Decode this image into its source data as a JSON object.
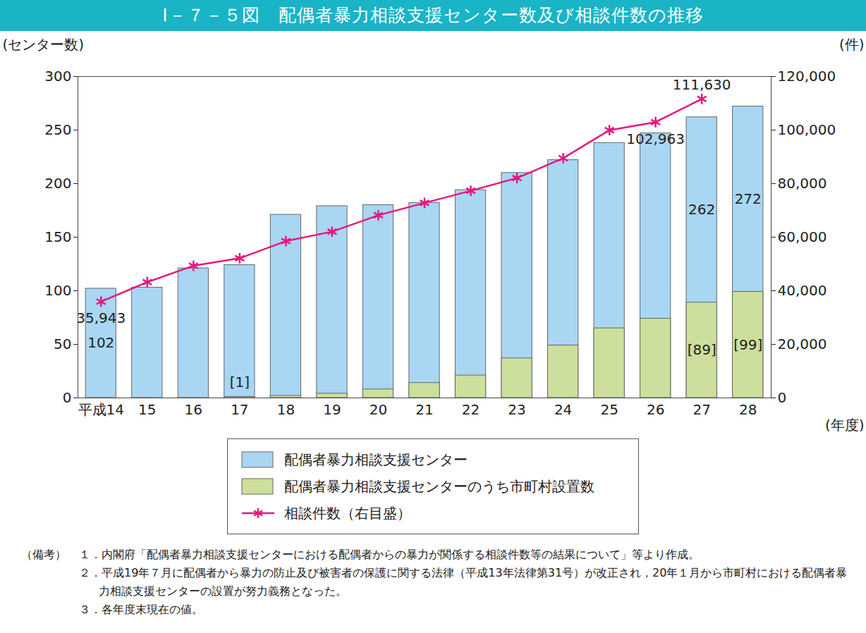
{
  "chart_data": {
    "type": "bar",
    "title": "Ⅰ－７－５図　配偶者暴力相談支援センター数及び相談件数の推移",
    "x_label": "(年度)",
    "y_label": "(センター数)",
    "y2_label": "(件)",
    "categories": [
      "平成14",
      "15",
      "16",
      "17",
      "18",
      "19",
      "20",
      "21",
      "22",
      "23",
      "24",
      "25",
      "26",
      "27",
      "28"
    ],
    "ylim": [
      0,
      300
    ],
    "yticks": [
      0,
      50,
      100,
      150,
      200,
      250,
      300
    ],
    "y2lim": [
      0,
      120000
    ],
    "y2ticks": [
      0,
      {
        "value": 20000,
        "label": "20,000"
      },
      {
        "value": 40000,
        "label": "40,000"
      },
      {
        "value": 60000,
        "label": "60,000"
      },
      {
        "value": 80000,
        "label": "80,000"
      },
      {
        "value": 100000,
        "label": "100,000"
      },
      {
        "value": 120000,
        "label": "120,000"
      }
    ],
    "stacked": false,
    "grid": false,
    "data_labels": true,
    "legend": "bottom",
    "series": [
      {
        "name": "配偶者暴力相談支援センター",
        "type": "bar",
        "color": "#a9d6f3",
        "values": [
          102,
          103,
          121,
          124,
          171,
          179,
          180,
          182,
          194,
          210,
          222,
          238,
          247,
          262,
          272
        ],
        "value_labels": [
          "102",
          null,
          null,
          null,
          null,
          null,
          null,
          null,
          null,
          null,
          null,
          null,
          null,
          "262",
          "272"
        ]
      },
      {
        "name": "配偶者暴力相談支援センターのうち市町村設置数",
        "type": "bar",
        "color": "#cddf9c",
        "values": [
          null,
          null,
          null,
          1,
          2,
          4,
          8,
          14,
          21,
          37,
          49,
          65,
          74,
          89,
          99
        ],
        "value_labels": [
          null,
          null,
          null,
          "[1]",
          null,
          null,
          null,
          null,
          null,
          null,
          null,
          null,
          null,
          "[89]",
          "[99]"
        ]
      },
      {
        "name": "相談件数（右目盛）",
        "type": "line",
        "axis": "y2",
        "color": "#e5197d",
        "marker": "asterisk",
        "line_style": "solid",
        "values": [
          35943,
          43225,
          49329,
          52145,
          58528,
          62078,
          68196,
          72792,
          77334,
          82099,
          89490,
          99961,
          102963,
          111630,
          null
        ],
        "value_labels": [
          "35,943",
          null,
          null,
          null,
          null,
          null,
          null,
          null,
          null,
          null,
          null,
          null,
          "102,963",
          "111,630",
          null
        ]
      }
    ],
    "notes_heading": "（備考）",
    "notes": [
      "１．内閣府「配偶者暴力相談支援センターにおける配偶者からの暴力が関係する相談件数等の結果について」等より作成。",
      "２．平成19年７月に配偶者から暴力の防止及び被害者の保護に関する法律（平成13年法律第31号）が改正され，20年１月から市町村における配偶者暴力相談支援センターの設置が努力義務となった。",
      "３．各年度末現在の値。"
    ]
  }
}
